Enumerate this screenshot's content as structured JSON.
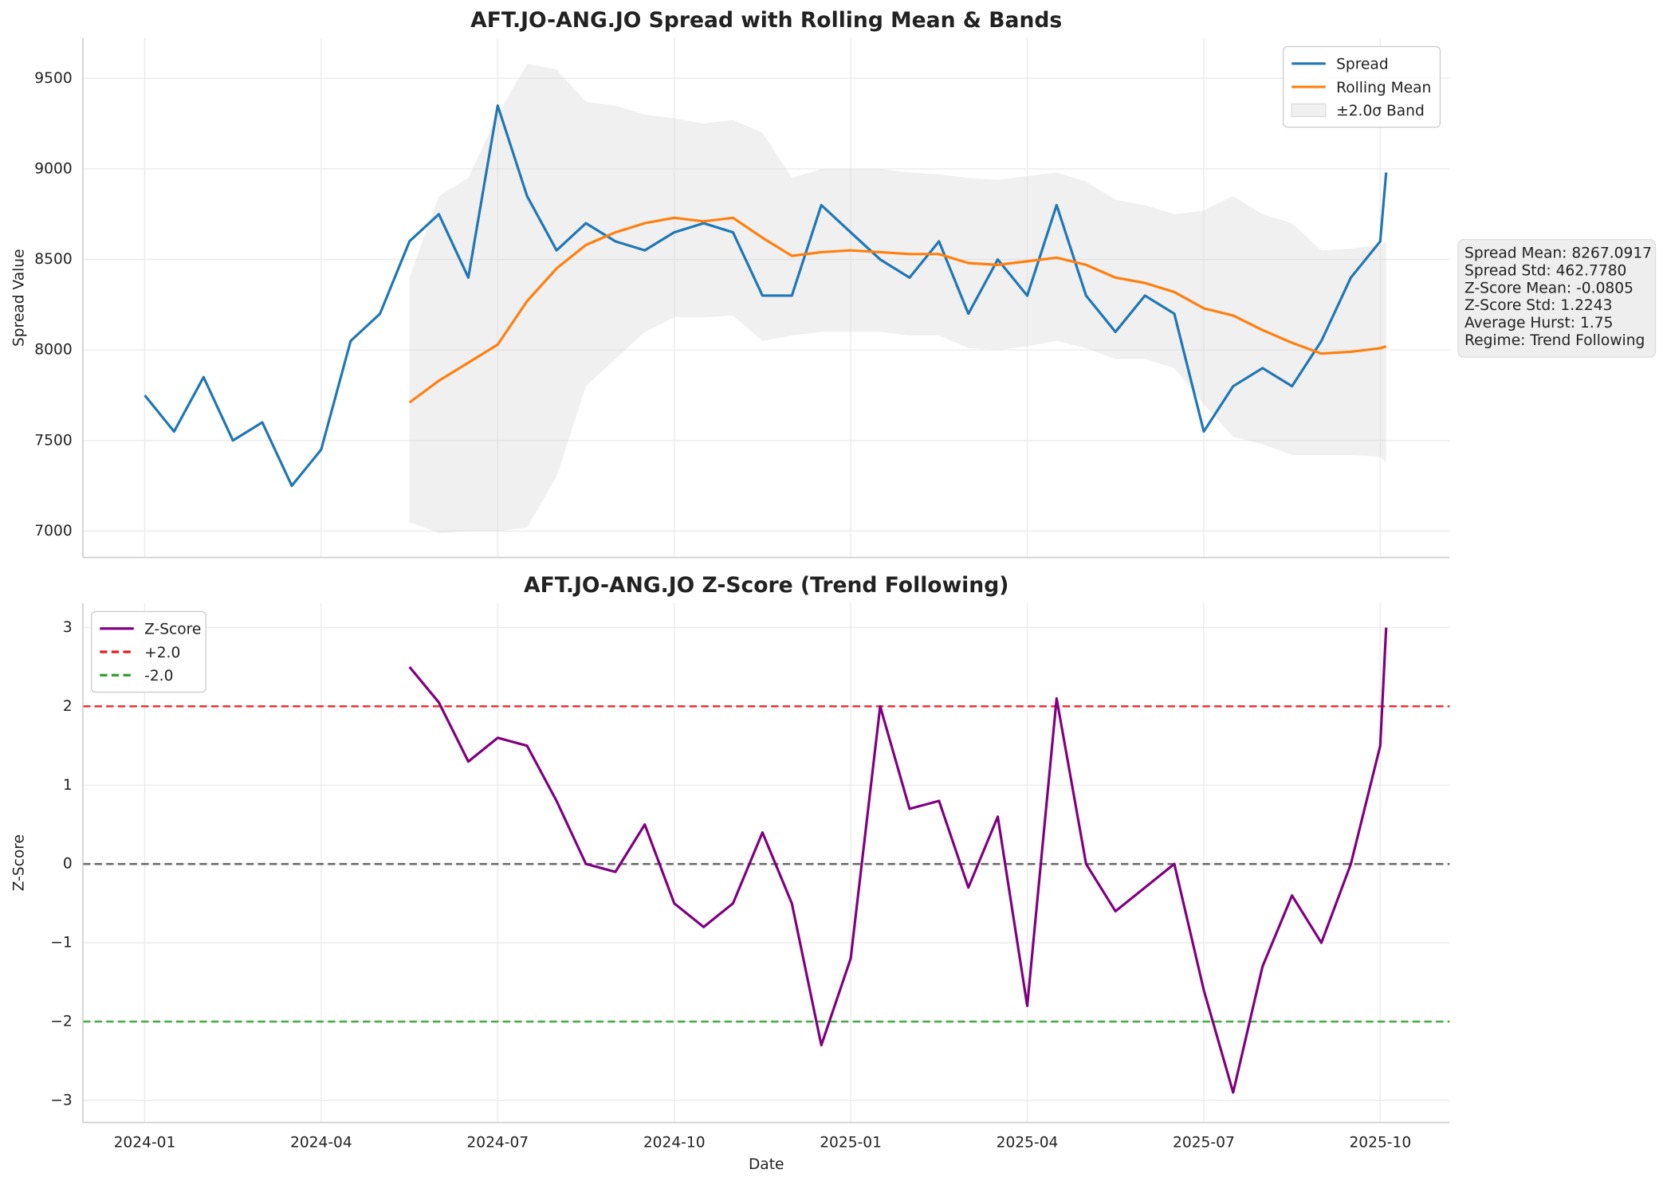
{
  "chart_data": [
    {
      "type": "line",
      "title": "AFT.JO-ANG.JO Spread with Rolling Mean & Bands",
      "y_label": "Spread Value",
      "x": [
        0,
        0.5,
        1,
        1.5,
        2,
        2.5,
        3,
        3.5,
        4,
        4.5,
        5,
        5.5,
        6,
        6.5,
        7,
        7.5,
        8,
        8.5,
        9,
        9.5,
        10,
        10.5,
        11,
        11.5,
        12,
        12.5,
        13,
        13.5,
        14,
        14.5,
        15,
        15.5,
        16,
        16.5,
        17,
        17.5,
        18,
        18.5,
        19,
        19.5,
        20,
        20.5,
        21,
        21.1
      ],
      "xlim": [
        -1.05,
        22.18
      ],
      "ylim": [
        6854,
        9722
      ],
      "yticks": [
        7000,
        7500,
        8000,
        8500,
        9000,
        9500
      ],
      "grid": true,
      "legend": "upper right",
      "series": [
        {
          "name": "Spread",
          "color": "#1f77b4",
          "values": [
            7750,
            7550,
            7850,
            7500,
            7600,
            7250,
            7450,
            8050,
            8200,
            8600,
            8750,
            8400,
            9350,
            8850,
            8550,
            8700,
            8600,
            8550,
            8650,
            8700,
            8650,
            8300,
            8300,
            8800,
            8650,
            8500,
            8400,
            8600,
            8200,
            8500,
            8300,
            8800,
            8300,
            8100,
            8300,
            8200,
            7550,
            7800,
            7900,
            7800,
            8050,
            8400,
            8600,
            8980
          ]
        },
        {
          "name": "Rolling Mean",
          "color": "#ff7f0e",
          "values": [
            null,
            null,
            null,
            null,
            null,
            null,
            null,
            null,
            null,
            7710,
            7830,
            7930,
            8030,
            8270,
            8450,
            8580,
            8650,
            8700,
            8730,
            8710,
            8730,
            8620,
            8520,
            8540,
            8550,
            8540,
            8530,
            8530,
            8480,
            8470,
            8490,
            8510,
            8470,
            8400,
            8370,
            8320,
            8230,
            8190,
            8110,
            8040,
            7980,
            7990,
            8010,
            8020
          ]
        }
      ],
      "band": {
        "name": "±2.0σ Band",
        "color": "#d3d3d3",
        "upper": [
          null,
          null,
          null,
          null,
          null,
          null,
          null,
          null,
          null,
          8400,
          8850,
          8950,
          9300,
          9580,
          9550,
          9370,
          9350,
          9300,
          9280,
          9250,
          9270,
          9200,
          8950,
          9000,
          9000,
          9000,
          8980,
          8970,
          8950,
          8940,
          8960,
          8980,
          8930,
          8830,
          8800,
          8750,
          8770,
          8850,
          8750,
          8700,
          8550,
          8560,
          8580,
          8600
        ],
        "lower": [
          null,
          null,
          null,
          null,
          null,
          null,
          null,
          null,
          null,
          7050,
          6990,
          7000,
          7000,
          7020,
          7300,
          7800,
          7950,
          8100,
          8180,
          8180,
          8190,
          8050,
          8080,
          8100,
          8100,
          8100,
          8080,
          8080,
          8010,
          8000,
          8020,
          8050,
          8010,
          7950,
          7950,
          7900,
          7700,
          7520,
          7480,
          7420,
          7420,
          7420,
          7410,
          7380
        ]
      },
      "annotation": [
        "Spread Mean: 8267.0917",
        "Spread Std: 462.7780",
        "Z-Score Mean: -0.0805",
        "Z-Score Std: 1.2243",
        "Average Hurst: 1.75",
        "Regime: Trend Following"
      ]
    },
    {
      "type": "line",
      "title": "AFT.JO-ANG.JO Z-Score (Trend Following)",
      "x_label": "Date",
      "y_label": "Z-Score",
      "x": [
        0,
        0.5,
        1,
        1.5,
        2,
        2.5,
        3,
        3.5,
        4,
        4.5,
        5,
        5.5,
        6,
        6.5,
        7,
        7.5,
        8,
        8.5,
        9,
        9.5,
        10,
        10.5,
        11,
        11.5,
        12,
        12.5,
        13,
        13.5,
        14,
        14.5,
        15,
        15.5,
        16,
        16.5,
        17,
        17.5,
        18,
        18.5,
        19,
        19.5,
        20,
        20.5,
        21,
        21.1
      ],
      "xlim": [
        -1.05,
        22.18
      ],
      "xticks": [
        {
          "value": 0,
          "label": "2024-01"
        },
        {
          "value": 3,
          "label": "2024-04"
        },
        {
          "value": 6,
          "label": "2024-07"
        },
        {
          "value": 9,
          "label": "2024-10"
        },
        {
          "value": 12,
          "label": "2025-01"
        },
        {
          "value": 15,
          "label": "2025-04"
        },
        {
          "value": 18,
          "label": "2025-07"
        },
        {
          "value": 21,
          "label": "2025-10"
        }
      ],
      "ylim": [
        -3.28,
        3.31
      ],
      "yticks": [
        {
          "value": -3,
          "label": "−3"
        },
        {
          "value": -2,
          "label": "−2"
        },
        {
          "value": -1,
          "label": "−1"
        },
        0,
        1,
        2,
        3
      ],
      "grid": true,
      "legend": "upper left",
      "series": [
        {
          "name": "Z-Score",
          "color": "#800080",
          "values": [
            null,
            null,
            null,
            null,
            null,
            null,
            null,
            null,
            null,
            2.5,
            2.05,
            1.3,
            1.6,
            1.5,
            0.8,
            0.0,
            -0.1,
            0.5,
            -0.5,
            -0.8,
            -0.5,
            0.4,
            -0.5,
            -2.3,
            -1.2,
            2.0,
            0.7,
            0.8,
            -0.3,
            0.6,
            -1.8,
            2.1,
            0.0,
            -0.6,
            -0.3,
            0.0,
            -1.6,
            -2.9,
            -1.3,
            -0.4,
            -1.0,
            0.0,
            1.5,
            3.0
          ]
        }
      ],
      "hlines": [
        {
          "name": "+2.0",
          "value": 2,
          "color": "#e41a1c"
        },
        {
          "name": "-2.0",
          "value": -2,
          "color": "#2ca02c"
        },
        {
          "value": 0,
          "color": "#555555"
        }
      ]
    }
  ]
}
